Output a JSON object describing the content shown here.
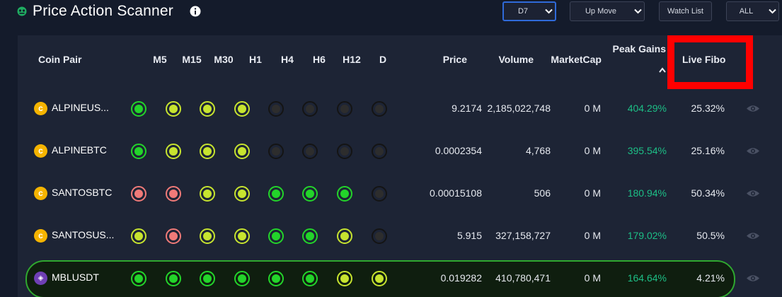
{
  "header": {
    "title": "Price Action Scanner",
    "info_icon": "info-icon",
    "controls": {
      "timeframe": "D7",
      "move": "Up Move",
      "watchlist": "Watch List",
      "filter": "ALL"
    }
  },
  "columns": {
    "coin_pair": "Coin Pair",
    "m5": "M5",
    "m15": "M15",
    "m30": "M30",
    "h1": "H1",
    "h4": "H4",
    "h6": "H6",
    "h12": "H12",
    "d": "D",
    "price": "Price",
    "volume": "Volume",
    "marketcap": "MarketCap",
    "peak_gains": "Peak Gains",
    "live_fibo": "Live Fibo"
  },
  "colors": {
    "green": "#23d42a",
    "yellow": "#c7e42f",
    "red": "#f07a78",
    "black": "#2d2d2d",
    "gain": "#1dbf86",
    "highlight": "#ff0000"
  },
  "rows": [
    {
      "pair": "ALPINEUS...",
      "icon": "coin-icon",
      "signals": [
        "green",
        "yellow",
        "yellow",
        "yellow",
        "black",
        "black",
        "black",
        "black"
      ],
      "price": "9.2174",
      "volume": "2,185,022,748",
      "marketcap": "0 M",
      "peak_gains": "404.29%",
      "live_fibo": "25.32%"
    },
    {
      "pair": "ALPINEBTC",
      "icon": "coin-icon",
      "signals": [
        "green",
        "yellow",
        "yellow",
        "yellow",
        "black",
        "black",
        "black",
        "black"
      ],
      "price": "0.0002354",
      "volume": "4,768",
      "marketcap": "0 M",
      "peak_gains": "395.54%",
      "live_fibo": "25.16%"
    },
    {
      "pair": "SANTOSBTC",
      "icon": "coin-icon",
      "signals": [
        "red",
        "red",
        "yellow",
        "yellow",
        "green",
        "green",
        "green",
        "black"
      ],
      "price": "0.00015108",
      "volume": "506",
      "marketcap": "0 M",
      "peak_gains": "180.94%",
      "live_fibo": "50.34%"
    },
    {
      "pair": "SANTOSUS...",
      "icon": "coin-icon",
      "signals": [
        "yellow",
        "red",
        "yellow",
        "yellow",
        "green",
        "green",
        "yellow",
        "black"
      ],
      "price": "5.915",
      "volume": "327,158,727",
      "marketcap": "0 M",
      "peak_gains": "179.02%",
      "live_fibo": "50.5%"
    },
    {
      "pair": "MBLUSDT",
      "icon": "coin-icon",
      "signals": [
        "green",
        "green",
        "green",
        "green",
        "green",
        "green",
        "yellow",
        "yellow"
      ],
      "price": "0.019282",
      "volume": "410,780,471",
      "marketcap": "0 M",
      "peak_gains": "164.64%",
      "live_fibo": "4.21%"
    }
  ]
}
